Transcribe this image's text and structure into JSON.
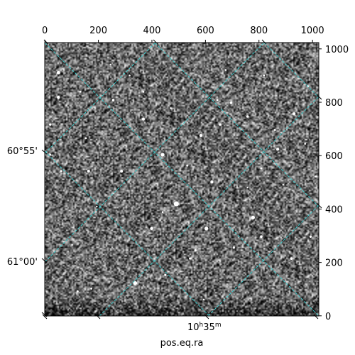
{
  "chart_data": {
    "type": "image",
    "xlabel": "pos.eq.ra",
    "pixel_axes": {
      "x_range": [
        0,
        1024
      ],
      "y_range": [
        0,
        1024
      ],
      "top_ticks": [
        0,
        200,
        400,
        600,
        800,
        1000
      ],
      "right_ticks": [
        0,
        200,
        400,
        600,
        800,
        1000
      ]
    },
    "world_ticks": {
      "dec_left": [
        "60°55'",
        "61°00'"
      ],
      "ra_bottom": {
        "hours": "10",
        "h": "h",
        "minutes": "35",
        "m": "m"
      }
    },
    "grid": true,
    "grid_color": "#3cc8c8",
    "image_colormap": "gray",
    "grid_lines": [
      {
        "type": "dec",
        "offset": 0
      },
      {
        "type": "dec",
        "offset": 1
      },
      {
        "type": "dec",
        "offset": 2
      },
      {
        "type": "dec",
        "offset": 3
      },
      {
        "type": "ra",
        "offset": 0
      },
      {
        "type": "ra",
        "offset": 1
      },
      {
        "type": "ra",
        "offset": 2
      },
      {
        "type": "ra",
        "offset": 3
      }
    ],
    "stars": [
      [
        0.48,
        0.59,
        3.5
      ],
      [
        0.59,
        0.68,
        2.5
      ],
      [
        0.33,
        0.88,
        2.8
      ],
      [
        0.76,
        0.64,
        2.6
      ],
      [
        0.43,
        0.41,
        2.6
      ],
      [
        0.61,
        0.51,
        2.2
      ],
      [
        0.05,
        0.11,
        2.4
      ],
      [
        0.16,
        0.47,
        2.0
      ],
      [
        0.36,
        0.28,
        2.0
      ],
      [
        0.57,
        0.34,
        2.1
      ],
      [
        0.28,
        0.47,
        2.0
      ],
      [
        0.39,
        0.68,
        2.2
      ],
      [
        0.79,
        0.71,
        1.8
      ],
      [
        0.74,
        0.27,
        1.7
      ],
      [
        0.85,
        0.39,
        2.0
      ],
      [
        0.91,
        0.26,
        2.0
      ],
      [
        0.64,
        0.3,
        1.8
      ],
      [
        0.25,
        0.21,
        1.8
      ],
      [
        0.69,
        0.75,
        1.6
      ],
      [
        0.96,
        0.16,
        1.6
      ],
      [
        0.9,
        0.79,
        1.8
      ],
      [
        0.12,
        0.91,
        1.5
      ],
      [
        0.55,
        0.76,
        1.6
      ],
      [
        0.68,
        0.22,
        1.8
      ],
      [
        0.05,
        0.2,
        2.2
      ],
      [
        0.02,
        0.3,
        1.7
      ],
      [
        0.44,
        0.85,
        1.6
      ],
      [
        0.84,
        0.32,
        1.4
      ],
      [
        0.97,
        0.71,
        1.6
      ],
      [
        0.17,
        0.9,
        1.4
      ],
      [
        0.06,
        0.47,
        1.5
      ],
      [
        0.79,
        0.46,
        1.5
      ],
      [
        0.53,
        0.79,
        1.5
      ],
      [
        0.63,
        0.21,
        1.4
      ],
      [
        0.15,
        0.35,
        1.4
      ],
      [
        0.99,
        0.49,
        1.5
      ],
      [
        0.8,
        0.12,
        1.4
      ],
      [
        0.02,
        0.41,
        1.3
      ],
      [
        0.43,
        0.62,
        1.3
      ],
      [
        0.31,
        0.12,
        1.2
      ],
      [
        0.24,
        0.08,
        1.2
      ],
      [
        0.66,
        0.1,
        1.3
      ],
      [
        0.87,
        0.52,
        1.2
      ],
      [
        0.36,
        0.18,
        1.4
      ],
      [
        0.52,
        0.45,
        1.4
      ],
      [
        0.19,
        0.6,
        1.2
      ],
      [
        0.74,
        0.53,
        1.2
      ],
      [
        0.1,
        0.74,
        1.2
      ],
      [
        0.58,
        0.94,
        1.2
      ],
      [
        0.95,
        0.37,
        1.3
      ],
      [
        0.13,
        0.18,
        1.3
      ],
      [
        0.46,
        0.24,
        1.3
      ]
    ]
  }
}
